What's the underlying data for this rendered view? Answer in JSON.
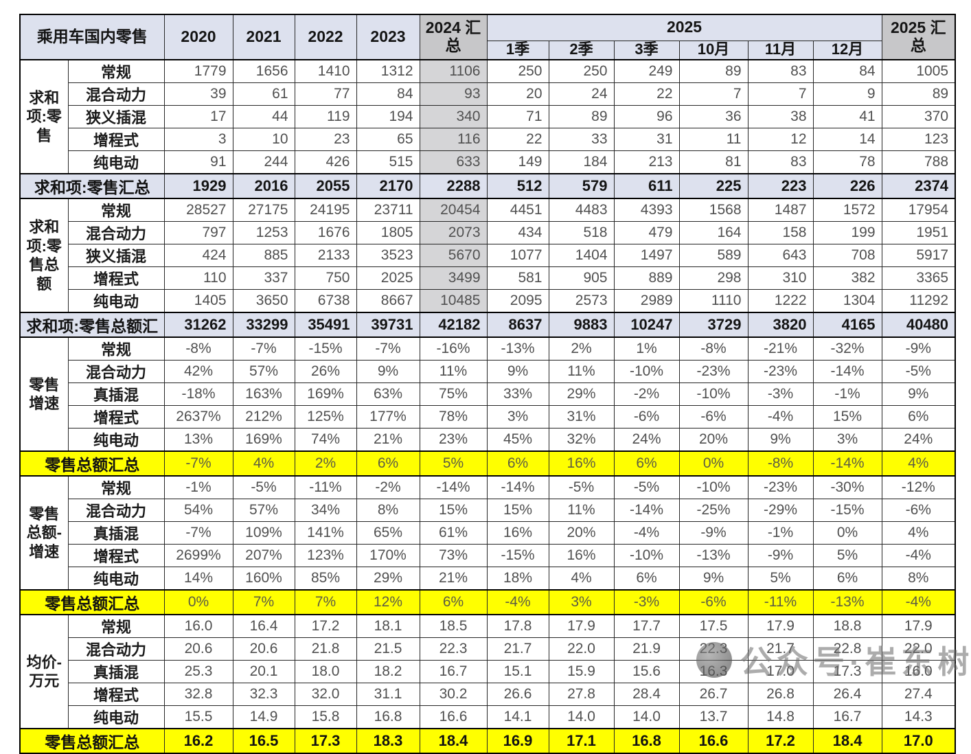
{
  "chart_data": {
    "type": "table",
    "title": "乘用车国内零售",
    "header": {
      "corner": "乘用车国内零售",
      "years": [
        "2020",
        "2021",
        "2022",
        "2023"
      ],
      "total2024": "2024 汇总",
      "group2025": "2025",
      "months": [
        "1季",
        "2季",
        "3季",
        "10月",
        "11月",
        "12月"
      ],
      "total2025": "2025 汇总"
    },
    "columns": [
      "2020",
      "2021",
      "2022",
      "2023",
      "2024 汇总",
      "1季",
      "2季",
      "3季",
      "10月",
      "11月",
      "12月",
      "2025 汇总"
    ],
    "blocks": [
      {
        "group": "求和项:零售",
        "align": "right",
        "gray_2024_column": true,
        "rows": [
          {
            "label": "常规",
            "values": [
              "1779",
              "1656",
              "1410",
              "1312",
              "1106",
              "250",
              "250",
              "249",
              "89",
              "83",
              "84",
              "1005"
            ]
          },
          {
            "label": "混合动力",
            "values": [
              "39",
              "61",
              "77",
              "84",
              "93",
              "20",
              "24",
              "22",
              "7",
              "7",
              "9",
              "89"
            ]
          },
          {
            "label": "狭义插混",
            "values": [
              "17",
              "44",
              "119",
              "194",
              "340",
              "71",
              "89",
              "96",
              "36",
              "38",
              "41",
              "370"
            ]
          },
          {
            "label": "增程式",
            "values": [
              "3",
              "10",
              "23",
              "65",
              "116",
              "22",
              "33",
              "31",
              "11",
              "12",
              "14",
              "123"
            ]
          },
          {
            "label": "纯电动",
            "values": [
              "91",
              "244",
              "426",
              "515",
              "633",
              "149",
              "184",
              "213",
              "81",
              "83",
              "78",
              "788"
            ]
          }
        ],
        "summary": {
          "label": "求和项:零售汇总",
          "style": "blue",
          "values": [
            "1929",
            "2016",
            "2055",
            "2170",
            "2288",
            "512",
            "579",
            "611",
            "225",
            "223",
            "226",
            "2374"
          ]
        }
      },
      {
        "group": "求和项:零售总额",
        "align": "right",
        "gray_2024_column": true,
        "rows": [
          {
            "label": "常规",
            "values": [
              "28527",
              "27175",
              "24195",
              "23711",
              "20454",
              "4451",
              "4483",
              "4393",
              "1568",
              "1487",
              "1572",
              "17954"
            ]
          },
          {
            "label": "混合动力",
            "values": [
              "797",
              "1253",
              "1676",
              "1805",
              "2073",
              "434",
              "518",
              "479",
              "164",
              "158",
              "199",
              "1951"
            ]
          },
          {
            "label": "狭义插混",
            "values": [
              "424",
              "885",
              "2133",
              "3523",
              "5670",
              "1077",
              "1404",
              "1497",
              "589",
              "643",
              "708",
              "5917"
            ]
          },
          {
            "label": "增程式",
            "values": [
              "110",
              "337",
              "750",
              "2025",
              "3499",
              "581",
              "905",
              "889",
              "298",
              "310",
              "382",
              "3365"
            ]
          },
          {
            "label": "纯电动",
            "values": [
              "1405",
              "3650",
              "6738",
              "8667",
              "10485",
              "2095",
              "2573",
              "2989",
              "1110",
              "1222",
              "1304",
              "11292"
            ]
          }
        ],
        "summary": {
          "label": "求和项:零售总额汇",
          "style": "blue",
          "values": [
            "31262",
            "33299",
            "35491",
            "39731",
            "42182",
            "8637",
            "9883",
            "10247",
            "3729",
            "3820",
            "4165",
            "40480"
          ]
        }
      },
      {
        "group": "零售增速",
        "align": "center",
        "gray_2024_column": false,
        "rows": [
          {
            "label": "常规",
            "values": [
              "-8%",
              "-7%",
              "-15%",
              "-7%",
              "-16%",
              "-13%",
              "2%",
              "1%",
              "-8%",
              "-21%",
              "-32%",
              "-9%"
            ]
          },
          {
            "label": "混合动力",
            "values": [
              "42%",
              "57%",
              "26%",
              "9%",
              "11%",
              "9%",
              "11%",
              "-10%",
              "-23%",
              "-23%",
              "-14%",
              "-5%"
            ]
          },
          {
            "label": "真插混",
            "values": [
              "-18%",
              "163%",
              "169%",
              "63%",
              "75%",
              "33%",
              "29%",
              "-2%",
              "-10%",
              "-3%",
              "-1%",
              "9%"
            ]
          },
          {
            "label": "增程式",
            "values": [
              "2637%",
              "212%",
              "125%",
              "177%",
              "78%",
              "3%",
              "31%",
              "-6%",
              "-6%",
              "-4%",
              "15%",
              "6%"
            ]
          },
          {
            "label": "纯电动",
            "values": [
              "13%",
              "169%",
              "74%",
              "21%",
              "23%",
              "45%",
              "32%",
              "24%",
              "20%",
              "9%",
              "3%",
              "24%"
            ]
          }
        ],
        "summary": {
          "label": "零售总额汇总",
          "style": "yellow",
          "values": [
            "-7%",
            "4%",
            "2%",
            "6%",
            "5%",
            "6%",
            "16%",
            "6%",
            "0%",
            "-8%",
            "-14%",
            "4%"
          ]
        }
      },
      {
        "group": "零售总额-增速",
        "align": "center",
        "gray_2024_column": false,
        "rows": [
          {
            "label": "常规",
            "values": [
              "-1%",
              "-5%",
              "-11%",
              "-2%",
              "-14%",
              "-14%",
              "-5%",
              "-5%",
              "-10%",
              "-23%",
              "-30%",
              "-12%"
            ]
          },
          {
            "label": "混合动力",
            "values": [
              "54%",
              "57%",
              "34%",
              "8%",
              "15%",
              "15%",
              "11%",
              "-14%",
              "-25%",
              "-29%",
              "-15%",
              "-6%"
            ]
          },
          {
            "label": "真插混",
            "values": [
              "-7%",
              "109%",
              "141%",
              "65%",
              "61%",
              "16%",
              "20%",
              "-4%",
              "-9%",
              "-1%",
              "0%",
              "4%"
            ]
          },
          {
            "label": "增程式",
            "values": [
              "2699%",
              "207%",
              "123%",
              "170%",
              "73%",
              "-15%",
              "16%",
              "-10%",
              "-13%",
              "-9%",
              "5%",
              "-4%"
            ]
          },
          {
            "label": "纯电动",
            "values": [
              "14%",
              "160%",
              "85%",
              "29%",
              "21%",
              "18%",
              "4%",
              "6%",
              "9%",
              "5%",
              "6%",
              "8%"
            ]
          }
        ],
        "summary": {
          "label": "零售总额汇总",
          "style": "yellow",
          "values": [
            "0%",
            "7%",
            "7%",
            "12%",
            "6%",
            "-4%",
            "3%",
            "-3%",
            "-6%",
            "-11%",
            "-13%",
            "-4%"
          ]
        }
      },
      {
        "group": "均价-万元",
        "align": "center",
        "gray_2024_column": false,
        "rows": [
          {
            "label": "常规",
            "values": [
              "16.0",
              "16.4",
              "17.2",
              "18.1",
              "18.5",
              "17.8",
              "17.9",
              "17.7",
              "17.5",
              "17.9",
              "18.8",
              "17.9"
            ]
          },
          {
            "label": "混合动力",
            "values": [
              "20.6",
              "20.6",
              "21.8",
              "21.5",
              "22.3",
              "21.7",
              "22.0",
              "21.9",
              "22.3",
              "21.7",
              "22.8",
              "22.0"
            ]
          },
          {
            "label": "真插混",
            "values": [
              "25.3",
              "20.1",
              "18.0",
              "18.2",
              "16.7",
              "15.1",
              "15.9",
              "15.6",
              "16.3",
              "17.0",
              "17.3",
              "16.0"
            ]
          },
          {
            "label": "增程式",
            "values": [
              "32.8",
              "32.3",
              "32.0",
              "31.1",
              "30.2",
              "26.6",
              "27.8",
              "28.4",
              "26.7",
              "26.8",
              "26.4",
              "27.4"
            ]
          },
          {
            "label": "纯电动",
            "values": [
              "15.5",
              "14.9",
              "15.8",
              "16.8",
              "16.6",
              "14.1",
              "14.0",
              "14.0",
              "13.7",
              "14.8",
              "16.7",
              "14.3"
            ]
          }
        ],
        "summary": {
          "label": "零售总额汇总",
          "style": "yellow-bold",
          "values": [
            "16.2",
            "16.5",
            "17.3",
            "18.3",
            "18.4",
            "16.9",
            "17.1",
            "16.8",
            "16.6",
            "17.2",
            "18.4",
            "17.0"
          ]
        }
      }
    ],
    "layout": {
      "grid": true,
      "legend": "none"
    }
  },
  "watermark": {
    "text": "公众号·崔东树"
  },
  "colors": {
    "header_bg": "#dde1ee",
    "summary_blue_bg": "#dde1ee",
    "gray_header_bg": "#c7c7c9",
    "gray_column_bg": "#d5d5d7",
    "highlight_yellow": "#ffff00",
    "border": "#262626",
    "data_text": "#505050"
  }
}
